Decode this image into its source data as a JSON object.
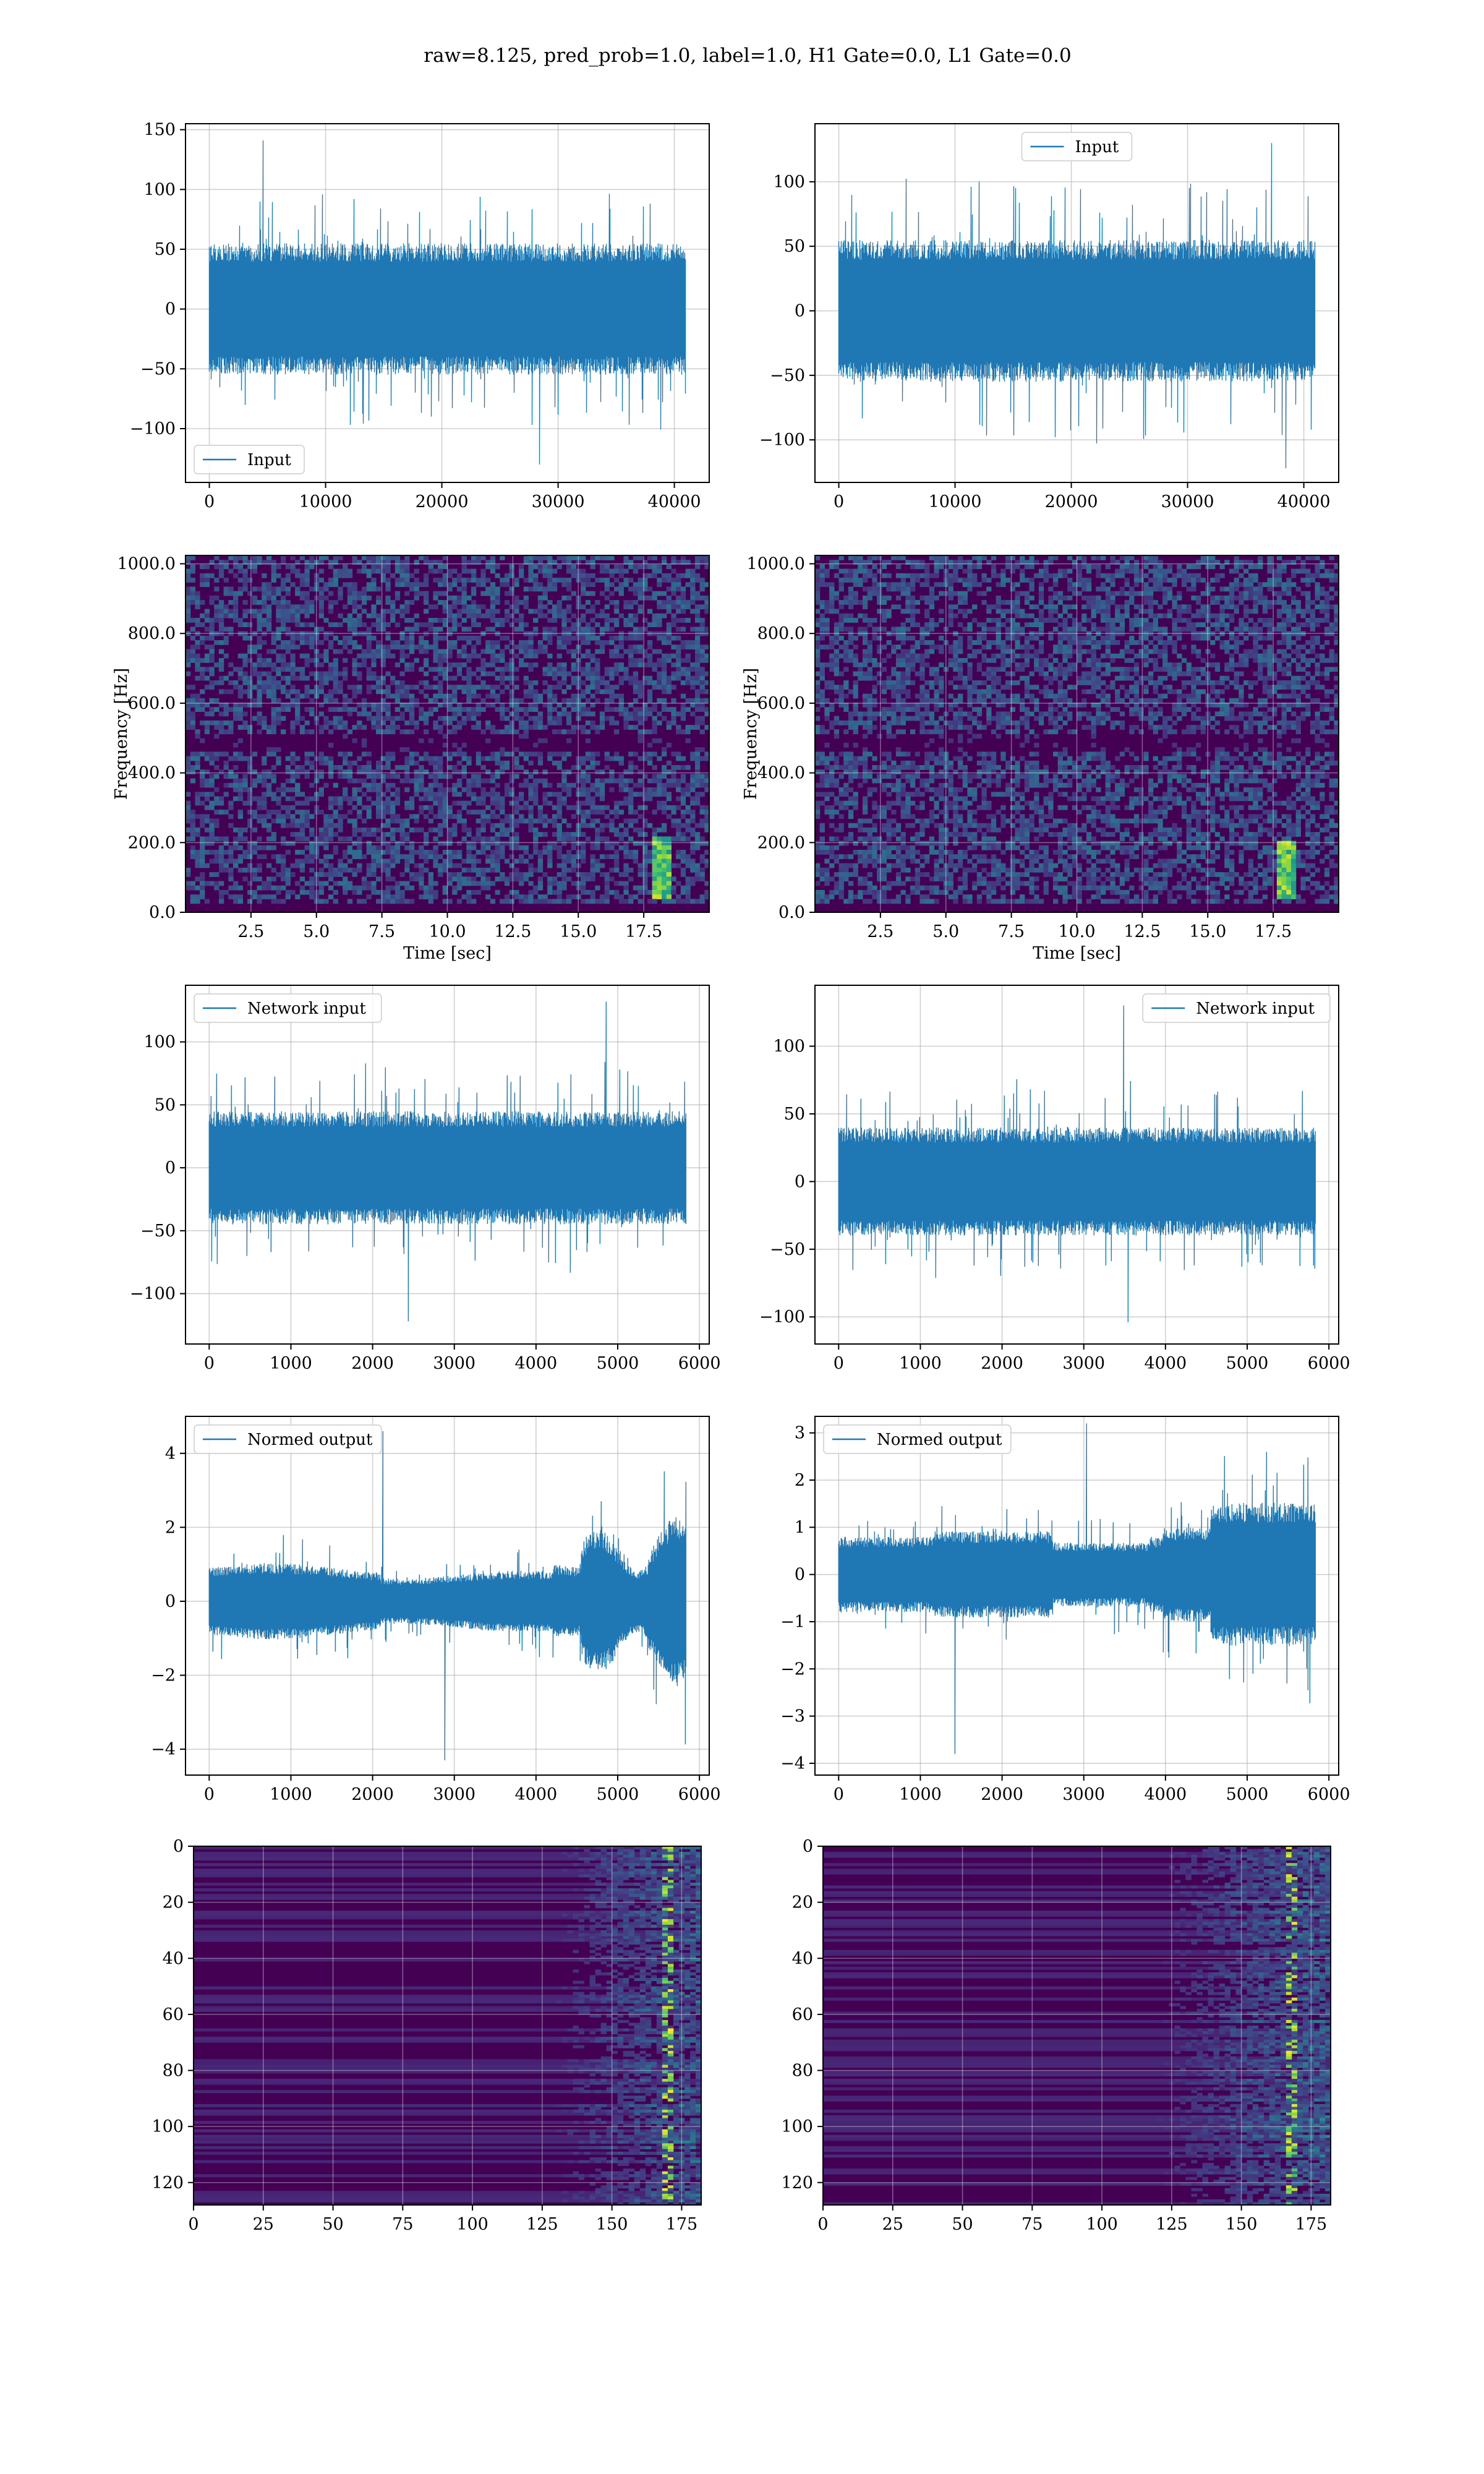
{
  "figure": {
    "title": "raw=8.125, pred_prob=1.0, label=1.0, H1 Gate=0.0, L1 Gate=0.0"
  },
  "colors": {
    "series": "#1f77b4",
    "grid": "#b0b0b0",
    "viridis": [
      "#440154",
      "#482878",
      "#3e4989",
      "#31688e",
      "#26828e",
      "#1f9e89",
      "#35b779",
      "#6ece58",
      "#b5de2b",
      "#fde725"
    ]
  },
  "chart_data": [
    {
      "id": "h1-input",
      "type": "line",
      "title": "",
      "xlabel": "",
      "ylabel": "",
      "xlim": [
        -2050,
        43000
      ],
      "ylim": [
        -145,
        155
      ],
      "xticks": [
        0,
        10000,
        20000,
        30000,
        40000
      ],
      "yticks": [
        -100,
        -50,
        0,
        50,
        100,
        150
      ],
      "grid": true,
      "legend": "lower-left",
      "series": [
        {
          "name": "Input",
          "x_range": [
            0,
            40960
          ],
          "peak_high": 141,
          "peak_low": -130,
          "typical_amplitude": 55
        }
      ]
    },
    {
      "id": "l1-input",
      "type": "line",
      "title": "",
      "xlabel": "",
      "ylabel": "",
      "xlim": [
        -2050,
        43000
      ],
      "ylim": [
        -133,
        145
      ],
      "xticks": [
        0,
        10000,
        20000,
        30000,
        40000
      ],
      "yticks": [
        -100,
        -50,
        0,
        50,
        100
      ],
      "grid": true,
      "legend": "upper-center",
      "series": [
        {
          "name": "Input",
          "x_range": [
            0,
            40960
          ],
          "peak_high": 130,
          "peak_low": -122,
          "typical_amplitude": 55
        }
      ]
    },
    {
      "id": "h1-spectrogram",
      "type": "heatmap",
      "title": "",
      "xlabel": "Time [sec]",
      "ylabel": "Frequency [Hz]",
      "xlim": [
        0,
        20
      ],
      "ylim": [
        0,
        1024
      ],
      "xticks": [
        2.5,
        5.0,
        7.5,
        10.0,
        12.5,
        15.0,
        17.5
      ],
      "yticks": [
        0,
        200,
        400,
        600,
        800,
        1000
      ],
      "grid": true,
      "colormap": "viridis",
      "features": {
        "quiet_band_hz": [
          465,
          510
        ],
        "chirp_time_sec": [
          17.8,
          18.6
        ],
        "chirp_freq_hz": [
          40,
          220
        ]
      }
    },
    {
      "id": "l1-spectrogram",
      "type": "heatmap",
      "title": "",
      "xlabel": "Time [sec]",
      "ylabel": "Frequency [Hz]",
      "xlim": [
        0,
        20
      ],
      "ylim": [
        0,
        1024
      ],
      "xticks": [
        2.5,
        5.0,
        7.5,
        10.0,
        12.5,
        15.0,
        17.5
      ],
      "yticks": [
        0,
        200,
        400,
        600,
        800,
        1000
      ],
      "grid": true,
      "colormap": "viridis",
      "features": {
        "quiet_band_hz": [
          465,
          510
        ],
        "chirp_time_sec": [
          17.6,
          18.4
        ],
        "chirp_freq_hz": [
          40,
          200
        ]
      }
    },
    {
      "id": "h1-network-input",
      "type": "line",
      "title": "",
      "xlabel": "",
      "ylabel": "",
      "xlim": [
        -290,
        6120
      ],
      "ylim": [
        -140,
        145
      ],
      "xticks": [
        0,
        1000,
        2000,
        3000,
        4000,
        5000,
        6000
      ],
      "yticks": [
        -100,
        -50,
        0,
        50,
        100
      ],
      "grid": true,
      "legend": "upper-left",
      "series": [
        {
          "name": "Network input",
          "x_range": [
            0,
            5832
          ],
          "peak_high": 132,
          "peak_low": -122,
          "typical_amplitude": 45
        }
      ]
    },
    {
      "id": "l1-network-input",
      "type": "line",
      "title": "",
      "xlabel": "",
      "ylabel": "",
      "xlim": [
        -290,
        6120
      ],
      "ylim": [
        -120,
        145
      ],
      "xticks": [
        0,
        1000,
        2000,
        3000,
        4000,
        5000,
        6000
      ],
      "yticks": [
        -100,
        -50,
        0,
        50,
        100
      ],
      "grid": true,
      "legend": "upper-right",
      "series": [
        {
          "name": "Network input",
          "x_range": [
            0,
            5832
          ],
          "peak_high": 130,
          "peak_low": -104,
          "typical_amplitude": 40
        }
      ]
    },
    {
      "id": "h1-normed-output",
      "type": "line",
      "title": "",
      "xlabel": "",
      "ylabel": "",
      "xlim": [
        -290,
        6120
      ],
      "ylim": [
        -4.7,
        5.0
      ],
      "xticks": [
        0,
        1000,
        2000,
        3000,
        4000,
        5000,
        6000
      ],
      "yticks": [
        -4,
        -2,
        0,
        2,
        4
      ],
      "grid": true,
      "legend": "upper-left",
      "series": [
        {
          "name": "Normed output",
          "x_range": [
            0,
            5832
          ],
          "peak_high": 4.6,
          "peak_low": -4.3,
          "typical_amplitude": 0.9
        }
      ]
    },
    {
      "id": "l1-normed-output",
      "type": "line",
      "title": "",
      "xlabel": "",
      "ylabel": "",
      "xlim": [
        -290,
        6120
      ],
      "ylim": [
        -4.25,
        3.35
      ],
      "xticks": [
        0,
        1000,
        2000,
        3000,
        4000,
        5000,
        6000
      ],
      "yticks": [
        -4,
        -3,
        -2,
        -1,
        0,
        1,
        2,
        3
      ],
      "grid": true,
      "legend": "upper-left",
      "series": [
        {
          "name": "Normed output",
          "x_range": [
            0,
            5832
          ],
          "peak_high": 3.2,
          "peak_low": -3.8,
          "typical_amplitude": 0.8
        }
      ]
    },
    {
      "id": "h1-feature-map",
      "type": "heatmap",
      "title": "",
      "xlabel": "",
      "ylabel": "",
      "xlim": [
        0,
        182
      ],
      "ylim": [
        128,
        0
      ],
      "xticks": [
        0,
        25,
        50,
        75,
        100,
        125,
        150,
        175
      ],
      "yticks": [
        0,
        20,
        40,
        60,
        80,
        100,
        120
      ],
      "grid": true,
      "colormap": "viridis",
      "features": {
        "active_from_x": 120,
        "bright_column_x": 170
      }
    },
    {
      "id": "l1-feature-map",
      "type": "heatmap",
      "title": "",
      "xlabel": "",
      "ylabel": "",
      "xlim": [
        0,
        182
      ],
      "ylim": [
        128,
        0
      ],
      "xticks": [
        0,
        25,
        50,
        75,
        100,
        125,
        150,
        175
      ],
      "yticks": [
        0,
        20,
        40,
        60,
        80,
        100,
        120
      ],
      "grid": true,
      "colormap": "viridis",
      "features": {
        "active_from_x": 110,
        "bright_column_x": 168
      }
    }
  ]
}
